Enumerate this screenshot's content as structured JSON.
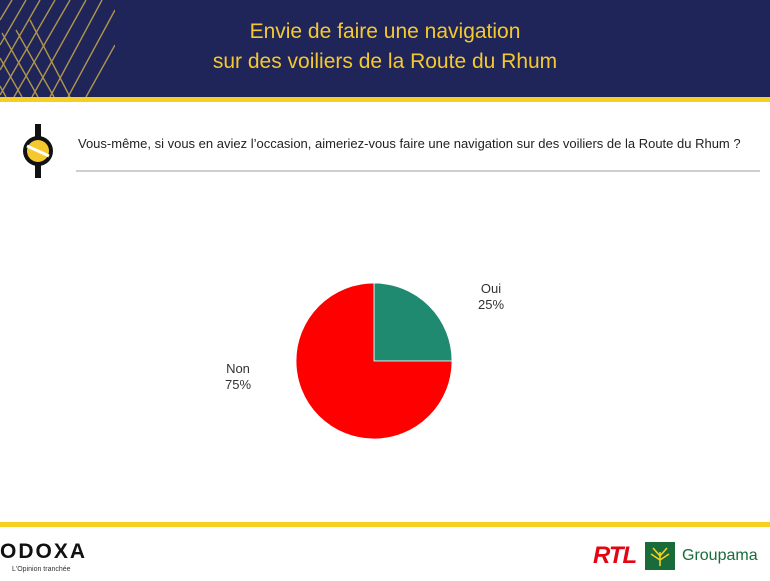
{
  "header": {
    "title_line1": "Envie de faire une navigation",
    "title_line2": "sur des voiliers de la Route du Rhum",
    "colors": {
      "background": "#1f2559",
      "title": "#f5c92d",
      "band": "#f5d020"
    }
  },
  "question": {
    "text": "Vous-même, si vous en aviez l’occasion, aimeriez-vous faire une navigation sur des voiliers de la Route du Rhum ?",
    "icon": "odoxa-coin-icon"
  },
  "chart_data": {
    "type": "pie",
    "title": "",
    "slices": [
      {
        "label": "Oui",
        "value": 25,
        "display": "25%",
        "color": "#1f8a70"
      },
      {
        "label": "Non",
        "value": 75,
        "display": "75%",
        "color": "#ff0000"
      }
    ],
    "start_angle": "12 o'clock",
    "direction": "clockwise",
    "legend": "none"
  },
  "footer": {
    "brand": "ODOXA",
    "tagline": "L'Opinion tranchée",
    "partners": [
      "RTL",
      "Groupama"
    ],
    "partner_icon": "groupama-leaf-icon"
  }
}
